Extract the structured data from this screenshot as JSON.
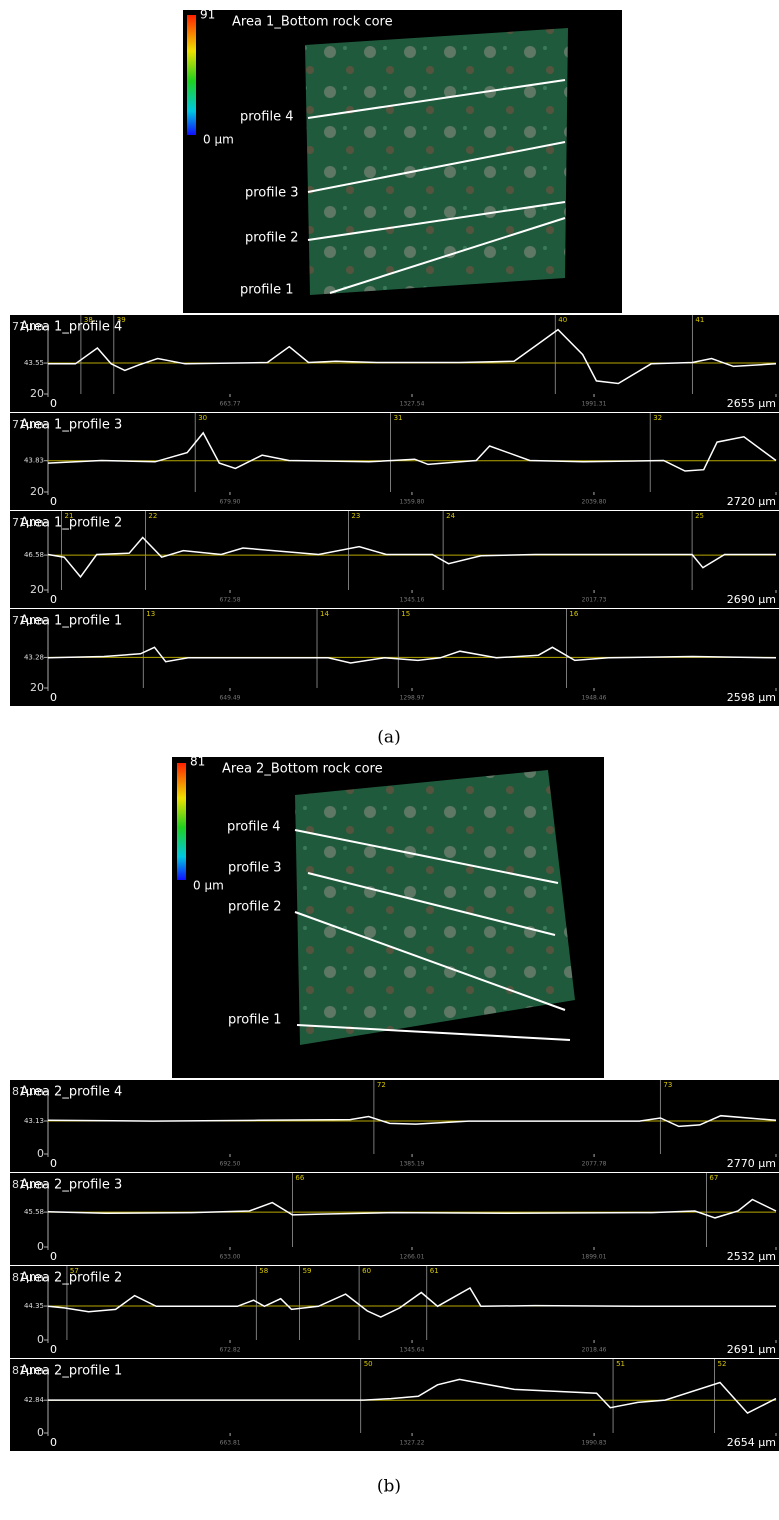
{
  "panels": [
    {
      "caption": "(a)",
      "title": "Area 1_Bottom rock core",
      "colorbar": {
        "max": "91",
        "min": "0 µm"
      },
      "profiles": [
        "profile 4",
        "profile 3",
        "profile 2",
        "profile 1"
      ]
    },
    {
      "caption": "(b)",
      "title": "Area 2_Bottom rock core",
      "colorbar": {
        "max": "81",
        "min": "0 µm"
      },
      "profiles": [
        "profile 4",
        "profile 3",
        "profile 2",
        "profile 1"
      ]
    }
  ],
  "chart_data": [
    {
      "type": "line",
      "title": "Area 1_profile 4",
      "color": "#ffffff",
      "ref_color": "#b8a800",
      "x": [
        0,
        100,
        180,
        230,
        280,
        330,
        400,
        500,
        800,
        880,
        950,
        1050,
        1200,
        1500,
        1700,
        1800,
        1860,
        1950,
        2000,
        2080,
        2200,
        2350,
        2420,
        2500,
        2655
      ],
      "values": [
        43,
        43,
        55,
        43,
        38,
        42,
        47,
        43,
        44,
        56,
        44,
        45,
        44,
        44,
        45,
        60,
        69,
        50,
        30,
        28,
        43,
        44,
        47,
        41,
        43
      ],
      "xlim": [
        0,
        2655
      ],
      "xticks": [
        0,
        663.77,
        1327.54,
        1991.31,
        {
          "value": 2655,
          "label": "2655 µm"
        }
      ],
      "ylim": [
        20,
        71
      ],
      "yticks": [
        20,
        43.55,
        {
          "value": 71,
          "label": "71µm"
        }
      ],
      "annotations": [
        {
          "text": "38",
          "x": 120
        },
        {
          "text": "39",
          "x": 240
        },
        {
          "text": "40",
          "x": 1850
        },
        {
          "text": "41",
          "x": 2350
        }
      ]
    },
    {
      "type": "line",
      "title": "Area 1_profile 3",
      "color": "#ffffff",
      "ref_color": "#b8a800",
      "x": [
        0,
        200,
        400,
        520,
        580,
        640,
        700,
        800,
        900,
        1200,
        1370,
        1420,
        1600,
        1650,
        1800,
        2000,
        2300,
        2380,
        2450,
        2500,
        2600,
        2720
      ],
      "values": [
        42,
        44,
        43,
        50,
        65,
        42,
        38,
        48,
        44,
        43,
        45,
        41,
        44,
        55,
        44,
        43,
        44,
        36,
        37,
        58,
        62,
        44
      ],
      "xlim": [
        0,
        2720
      ],
      "xticks": [
        0,
        {
          "value": 679.9,
          "label": "679.90"
        },
        {
          "value": 1359.8,
          "label": "1359.80"
        },
        {
          "value": 2039.8,
          "label": "2039.80"
        },
        {
          "value": 2720,
          "label": "2720 µm"
        }
      ],
      "ylim": [
        20,
        71
      ],
      "yticks": [
        20,
        43.83,
        {
          "value": 71,
          "label": "71µm"
        }
      ],
      "annotations": [
        {
          "text": "30",
          "x": 550
        },
        {
          "text": "31",
          "x": 1280
        },
        {
          "text": "32",
          "x": 2250
        }
      ]
    },
    {
      "type": "line",
      "title": "Area 1_profile 2",
      "color": "#ffffff",
      "ref_color": "#b8a800",
      "x": [
        0,
        60,
        120,
        180,
        300,
        350,
        420,
        500,
        640,
        720,
        1000,
        1150,
        1250,
        1420,
        1480,
        1600,
        1800,
        2100,
        2380,
        2420,
        2500,
        2690
      ],
      "values": [
        47,
        45,
        30,
        47,
        48,
        60,
        45,
        50,
        47,
        52,
        47,
        53,
        47,
        47,
        40,
        46,
        47,
        47,
        47,
        37,
        47,
        47
      ],
      "xlim": [
        0,
        2690
      ],
      "xticks": [
        0,
        672.58,
        1345.16,
        2017.73,
        {
          "value": 2690,
          "label": "2690 µm"
        }
      ],
      "ylim": [
        20,
        71
      ],
      "yticks": [
        20,
        46.58,
        {
          "value": 71,
          "label": "71µm"
        }
      ],
      "annotations": [
        {
          "text": "21",
          "x": 50
        },
        {
          "text": "22",
          "x": 360
        },
        {
          "text": "23",
          "x": 1110
        },
        {
          "text": "24",
          "x": 1460
        },
        {
          "text": "25",
          "x": 2380
        }
      ]
    },
    {
      "type": "line",
      "title": "Area 1_profile 1",
      "color": "#ffffff",
      "ref_color": "#b8a800",
      "x": [
        0,
        200,
        330,
        380,
        420,
        500,
        800,
        1000,
        1080,
        1200,
        1320,
        1400,
        1470,
        1600,
        1750,
        1800,
        1880,
        2000,
        2300,
        2598
      ],
      "values": [
        43,
        44,
        46,
        51,
        40,
        43,
        43,
        43,
        39,
        43,
        41,
        43,
        48,
        43,
        45,
        51,
        41,
        43,
        44,
        43
      ],
      "xlim": [
        0,
        2598
      ],
      "xticks": [
        0,
        649.49,
        1298.97,
        1948.46,
        {
          "value": 2598,
          "label": "2598 µm"
        }
      ],
      "ylim": [
        20,
        71
      ],
      "yticks": [
        20,
        43.28,
        {
          "value": 71,
          "label": "71µm"
        }
      ],
      "annotations": [
        {
          "text": "13",
          "x": 340
        },
        {
          "text": "14",
          "x": 960
        },
        {
          "text": "15",
          "x": 1250
        },
        {
          "text": "16",
          "x": 1850
        }
      ]
    },
    {
      "type": "line",
      "title": "Area 2_profile 4",
      "color": "#ffffff",
      "ref_color": "#b8a800",
      "x": [
        0,
        400,
        800,
        1150,
        1220,
        1300,
        1400,
        1600,
        2000,
        2250,
        2330,
        2400,
        2480,
        2560,
        2770
      ],
      "values": [
        44,
        43,
        44,
        45,
        49,
        40,
        39,
        43,
        43,
        43,
        47,
        36,
        38,
        50,
        44
      ],
      "xlim": [
        0,
        2770
      ],
      "xticks": [
        0,
        {
          "value": 692.5,
          "label": "692.50"
        },
        1385.19,
        2077.78,
        {
          "value": 2770,
          "label": "2770 µm"
        }
      ],
      "ylim": [
        0,
        81
      ],
      "yticks": [
        0,
        43.13,
        {
          "value": 81,
          "label": "81µm"
        }
      ],
      "annotations": [
        {
          "text": "72",
          "x": 1240
        },
        {
          "text": "73",
          "x": 2330
        }
      ]
    },
    {
      "type": "line",
      "title": "Area 2_profile 3",
      "color": "#ffffff",
      "ref_color": "#b8a800",
      "x": [
        0,
        200,
        500,
        700,
        780,
        850,
        950,
        1200,
        1600,
        2100,
        2250,
        2320,
        2400,
        2450,
        2532
      ],
      "values": [
        46,
        44,
        45,
        47,
        58,
        42,
        43,
        45,
        44,
        45,
        47,
        38,
        47,
        62,
        47
      ],
      "xlim": [
        0,
        2532
      ],
      "xticks": [
        0,
        {
          "value": 633,
          "label": "633.00"
        },
        1266.01,
        1899.01,
        {
          "value": 2532,
          "label": "2532 µm"
        }
      ],
      "ylim": [
        0,
        81
      ],
      "yticks": [
        0,
        45.58,
        {
          "value": 81,
          "label": "81µm"
        }
      ],
      "annotations": [
        {
          "text": "66",
          "x": 850
        },
        {
          "text": "67",
          "x": 2290
        }
      ]
    },
    {
      "type": "line",
      "title": "Area 2_profile 2",
      "color": "#ffffff",
      "ref_color": "#b8a800",
      "x": [
        0,
        60,
        150,
        250,
        320,
        400,
        700,
        760,
        800,
        860,
        900,
        1000,
        1100,
        1180,
        1230,
        1300,
        1380,
        1440,
        1480,
        1560,
        1600,
        1800,
        2200,
        2691
      ],
      "values": [
        44,
        42,
        37,
        40,
        58,
        44,
        44,
        52,
        44,
        54,
        40,
        44,
        60,
        38,
        30,
        42,
        62,
        44,
        52,
        68,
        44,
        45,
        44,
        44
      ],
      "xlim": [
        0,
        2691
      ],
      "xticks": [
        0,
        672.82,
        1345.64,
        2018.46,
        {
          "value": 2691,
          "label": "2691 µm"
        }
      ],
      "ylim": [
        0,
        81
      ],
      "yticks": [
        0,
        44.35,
        {
          "value": 81,
          "label": "81µm"
        }
      ],
      "annotations": [
        {
          "text": "57",
          "x": 70
        },
        {
          "text": "58",
          "x": 770
        },
        {
          "text": "59",
          "x": 930
        },
        {
          "text": "60",
          "x": 1150
        },
        {
          "text": "61",
          "x": 1400
        }
      ]
    },
    {
      "type": "line",
      "title": "Area 2_profile 1",
      "color": "#ffffff",
      "ref_color": "#b8a800",
      "x": [
        0,
        400,
        800,
        1100,
        1150,
        1250,
        1350,
        1420,
        1500,
        1700,
        2000,
        2050,
        2150,
        2250,
        2450,
        2550,
        2654
      ],
      "values": [
        43,
        43,
        43,
        43,
        43,
        45,
        48,
        63,
        70,
        57,
        52,
        33,
        40,
        43,
        66,
        26,
        45
      ],
      "xlim": [
        0,
        2654
      ],
      "xticks": [
        0,
        663.81,
        1327.22,
        1990.83,
        {
          "value": 2654,
          "label": "2654 µm"
        }
      ],
      "ylim": [
        0,
        81
      ],
      "yticks": [
        0,
        42.84,
        {
          "value": 81,
          "label": "81µm"
        }
      ],
      "annotations": [
        {
          "text": "50",
          "x": 1140
        },
        {
          "text": "51",
          "x": 2060
        },
        {
          "text": "52",
          "x": 2430
        }
      ]
    }
  ]
}
